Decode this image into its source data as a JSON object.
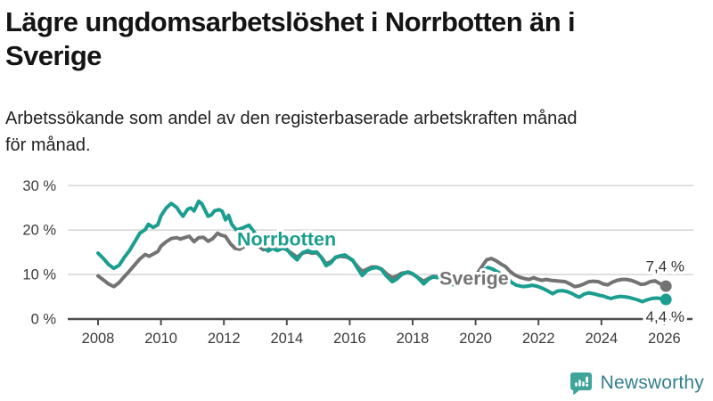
{
  "header": {
    "title_lines": [
      "Lägre ungdomsarbetslöshet i Norrbotten än i",
      "Sverige"
    ],
    "subtitle_lines": [
      "Arbetssökande som andel av den registerbaserade arbetskraften månad",
      "för månad."
    ]
  },
  "logo": {
    "label": "Newsworthy",
    "icon": "newsworthy-speech-bubble-bar-chart-icon",
    "icon_color": "#3fa49a",
    "text_color": "#337f8e"
  },
  "chart_data": {
    "type": "line",
    "x_unit": "year, monthly observations",
    "xlim": [
      2007.9,
      2026.4
    ],
    "ylim": [
      0,
      32
    ],
    "grid": "horizontal",
    "axis_color": "#4d4d4d",
    "grid_color": "#d8d8d8",
    "tick_text_color": "#3a3a3a",
    "yticks": [
      {
        "value": 0,
        "label": "0 %"
      },
      {
        "value": 10,
        "label": "10 %"
      },
      {
        "value": 20,
        "label": "20 %"
      },
      {
        "value": 30,
        "label": "30 %"
      }
    ],
    "xticks": [
      {
        "value": 2008,
        "label": "2008"
      },
      {
        "value": 2010,
        "label": "2010"
      },
      {
        "value": 2012,
        "label": "2012"
      },
      {
        "value": 2014,
        "label": "2014"
      },
      {
        "value": 2016,
        "label": "2016"
      },
      {
        "value": 2018,
        "label": "2018"
      },
      {
        "value": 2020,
        "label": "2020"
      },
      {
        "value": 2022,
        "label": "2022"
      },
      {
        "value": 2024,
        "label": "2024"
      },
      {
        "value": 2026,
        "label": "2026"
      }
    ],
    "series": [
      {
        "name": "Sverige",
        "color": "#737373",
        "label_pos": [
          2018.85,
          9.2
        ],
        "end_label": "7,4 %",
        "end_label_center_pct": 11.8,
        "end_value": 7.4,
        "points": [
          [
            2008.0,
            9.7
          ],
          [
            2008.17,
            8.8
          ],
          [
            2008.33,
            7.9
          ],
          [
            2008.5,
            7.3
          ],
          [
            2008.67,
            8.2
          ],
          [
            2008.83,
            9.5
          ],
          [
            2009.0,
            10.8
          ],
          [
            2009.17,
            12.2
          ],
          [
            2009.33,
            13.5
          ],
          [
            2009.5,
            14.5
          ],
          [
            2009.62,
            14.1
          ],
          [
            2009.75,
            14.6
          ],
          [
            2009.9,
            15.2
          ],
          [
            2010.0,
            16.4
          ],
          [
            2010.17,
            17.4
          ],
          [
            2010.33,
            18.1
          ],
          [
            2010.5,
            18.3
          ],
          [
            2010.62,
            18.0
          ],
          [
            2010.75,
            18.3
          ],
          [
            2010.9,
            18.6
          ],
          [
            2011.05,
            17.4
          ],
          [
            2011.2,
            18.3
          ],
          [
            2011.35,
            18.4
          ],
          [
            2011.5,
            17.5
          ],
          [
            2011.65,
            18.1
          ],
          [
            2011.8,
            19.3
          ],
          [
            2011.9,
            18.9
          ],
          [
            2012.05,
            18.6
          ],
          [
            2012.2,
            17.0
          ],
          [
            2012.35,
            15.9
          ],
          [
            2012.5,
            15.7
          ],
          [
            2012.65,
            16.3
          ],
          [
            2012.8,
            16.8
          ],
          [
            2012.95,
            17.0
          ],
          [
            2013.1,
            16.4
          ],
          [
            2013.25,
            15.6
          ],
          [
            2013.4,
            15.9
          ],
          [
            2013.55,
            16.3
          ],
          [
            2013.7,
            16.4
          ],
          [
            2013.85,
            16.0
          ],
          [
            2014.0,
            15.6
          ],
          [
            2014.15,
            14.8
          ],
          [
            2014.33,
            13.9
          ],
          [
            2014.5,
            14.8
          ],
          [
            2014.65,
            15.1
          ],
          [
            2014.8,
            14.8
          ],
          [
            2014.95,
            14.9
          ],
          [
            2015.1,
            13.9
          ],
          [
            2015.25,
            12.4
          ],
          [
            2015.4,
            12.9
          ],
          [
            2015.55,
            13.8
          ],
          [
            2015.7,
            14.1
          ],
          [
            2015.85,
            14.0
          ],
          [
            2015.95,
            13.8
          ],
          [
            2016.1,
            13.1
          ],
          [
            2016.25,
            11.8
          ],
          [
            2016.4,
            10.7
          ],
          [
            2016.55,
            11.2
          ],
          [
            2016.7,
            11.7
          ],
          [
            2016.85,
            11.7
          ],
          [
            2017.0,
            11.3
          ],
          [
            2017.15,
            10.3
          ],
          [
            2017.35,
            9.3
          ],
          [
            2017.5,
            9.7
          ],
          [
            2017.65,
            10.3
          ],
          [
            2017.85,
            10.5
          ],
          [
            2018.0,
            10.1
          ],
          [
            2018.15,
            9.4
          ],
          [
            2018.35,
            8.5
          ],
          [
            2018.5,
            9.1
          ],
          [
            2018.65,
            9.6
          ],
          [
            2018.8,
            9.5
          ],
          [
            2019.0,
            9.2
          ],
          [
            2019.15,
            8.6
          ],
          [
            2019.3,
            8.3
          ],
          [
            2019.5,
            8.8
          ],
          [
            2019.7,
            9.2
          ],
          [
            2019.85,
            9.4
          ],
          [
            2020.0,
            9.7
          ],
          [
            2020.2,
            11.8
          ],
          [
            2020.35,
            13.3
          ],
          [
            2020.5,
            13.6
          ],
          [
            2020.65,
            13.1
          ],
          [
            2020.8,
            12.4
          ],
          [
            2020.95,
            11.8
          ],
          [
            2021.1,
            10.7
          ],
          [
            2021.25,
            9.9
          ],
          [
            2021.4,
            9.4
          ],
          [
            2021.55,
            9.1
          ],
          [
            2021.7,
            8.9
          ],
          [
            2021.85,
            9.3
          ],
          [
            2021.95,
            9.0
          ],
          [
            2022.1,
            8.7
          ],
          [
            2022.25,
            8.9
          ],
          [
            2022.4,
            8.7
          ],
          [
            2022.55,
            8.6
          ],
          [
            2022.7,
            8.5
          ],
          [
            2022.85,
            8.4
          ],
          [
            2023.0,
            7.9
          ],
          [
            2023.15,
            7.3
          ],
          [
            2023.3,
            7.5
          ],
          [
            2023.45,
            7.9
          ],
          [
            2023.6,
            8.4
          ],
          [
            2023.75,
            8.5
          ],
          [
            2023.9,
            8.4
          ],
          [
            2024.05,
            7.9
          ],
          [
            2024.2,
            7.7
          ],
          [
            2024.35,
            8.3
          ],
          [
            2024.5,
            8.7
          ],
          [
            2024.65,
            8.9
          ],
          [
            2024.8,
            8.9
          ],
          [
            2024.95,
            8.7
          ],
          [
            2025.1,
            8.3
          ],
          [
            2025.25,
            7.8
          ],
          [
            2025.4,
            7.9
          ],
          [
            2025.55,
            8.4
          ],
          [
            2025.7,
            8.6
          ],
          [
            2025.85,
            8.0
          ],
          [
            2026.05,
            7.4
          ]
        ]
      },
      {
        "name": "Norrbotten",
        "color": "#1b9e8f",
        "label_pos": [
          2012.42,
          18.0
        ],
        "end_label": "4,4 %",
        "end_label_center_pct": 0.5,
        "end_value": 4.4,
        "points": [
          [
            2008.0,
            14.8
          ],
          [
            2008.17,
            13.6
          ],
          [
            2008.33,
            12.3
          ],
          [
            2008.5,
            11.4
          ],
          [
            2008.67,
            12.1
          ],
          [
            2008.83,
            13.8
          ],
          [
            2009.0,
            15.4
          ],
          [
            2009.17,
            17.4
          ],
          [
            2009.33,
            19.3
          ],
          [
            2009.5,
            20.1
          ],
          [
            2009.6,
            21.3
          ],
          [
            2009.75,
            20.6
          ],
          [
            2009.9,
            21.2
          ],
          [
            2010.0,
            23.2
          ],
          [
            2010.17,
            25.0
          ],
          [
            2010.33,
            26.0
          ],
          [
            2010.5,
            25.1
          ],
          [
            2010.6,
            24.0
          ],
          [
            2010.7,
            23.1
          ],
          [
            2010.85,
            24.7
          ],
          [
            2010.95,
            25.0
          ],
          [
            2011.05,
            24.3
          ],
          [
            2011.2,
            26.5
          ],
          [
            2011.3,
            25.9
          ],
          [
            2011.5,
            23.1
          ],
          [
            2011.6,
            23.4
          ],
          [
            2011.7,
            24.3
          ],
          [
            2011.85,
            24.6
          ],
          [
            2011.95,
            24.2
          ],
          [
            2012.05,
            22.3
          ],
          [
            2012.15,
            23.3
          ],
          [
            2012.25,
            21.3
          ],
          [
            2012.4,
            20.0
          ],
          [
            2012.6,
            20.5
          ],
          [
            2012.8,
            21.1
          ],
          [
            2013.0,
            19.2
          ],
          [
            2013.2,
            16.6
          ],
          [
            2013.4,
            15.3
          ],
          [
            2013.55,
            15.9
          ],
          [
            2013.7,
            15.4
          ],
          [
            2013.9,
            16.0
          ],
          [
            2014.0,
            15.7
          ],
          [
            2014.15,
            14.4
          ],
          [
            2014.33,
            13.3
          ],
          [
            2014.5,
            14.9
          ],
          [
            2014.67,
            15.4
          ],
          [
            2014.8,
            15.0
          ],
          [
            2014.95,
            15.1
          ],
          [
            2015.1,
            13.8
          ],
          [
            2015.25,
            12.0
          ],
          [
            2015.4,
            12.6
          ],
          [
            2015.55,
            13.9
          ],
          [
            2015.7,
            14.2
          ],
          [
            2015.85,
            14.4
          ],
          [
            2015.95,
            13.9
          ],
          [
            2016.1,
            13.2
          ],
          [
            2016.25,
            11.4
          ],
          [
            2016.4,
            9.8
          ],
          [
            2016.55,
            10.9
          ],
          [
            2016.7,
            11.4
          ],
          [
            2016.85,
            11.6
          ],
          [
            2017.0,
            11.2
          ],
          [
            2017.15,
            9.8
          ],
          [
            2017.35,
            8.4
          ],
          [
            2017.5,
            9.0
          ],
          [
            2017.65,
            10.0
          ],
          [
            2017.85,
            10.6
          ],
          [
            2018.0,
            10.2
          ],
          [
            2018.15,
            9.4
          ],
          [
            2018.35,
            7.9
          ],
          [
            2018.5,
            8.9
          ],
          [
            2018.65,
            9.5
          ],
          [
            2018.8,
            9.3
          ],
          [
            2019.0,
            9.0
          ],
          [
            2019.15,
            8.2
          ],
          [
            2019.3,
            7.7
          ],
          [
            2019.5,
            8.6
          ],
          [
            2019.7,
            9.3
          ],
          [
            2019.85,
            9.4
          ],
          [
            2020.0,
            9.6
          ],
          [
            2020.2,
            10.8
          ],
          [
            2020.4,
            11.6
          ],
          [
            2020.55,
            11.2
          ],
          [
            2020.7,
            10.6
          ],
          [
            2020.85,
            10.0
          ],
          [
            2021.0,
            9.4
          ],
          [
            2021.15,
            8.2
          ],
          [
            2021.3,
            7.6
          ],
          [
            2021.5,
            7.3
          ],
          [
            2021.65,
            7.4
          ],
          [
            2021.8,
            7.6
          ],
          [
            2021.95,
            7.4
          ],
          [
            2022.1,
            7.0
          ],
          [
            2022.3,
            6.3
          ],
          [
            2022.45,
            5.7
          ],
          [
            2022.6,
            6.3
          ],
          [
            2022.75,
            6.4
          ],
          [
            2022.9,
            6.2
          ],
          [
            2023.05,
            5.8
          ],
          [
            2023.2,
            5.2
          ],
          [
            2023.3,
            4.9
          ],
          [
            2023.45,
            5.6
          ],
          [
            2023.6,
            5.9
          ],
          [
            2023.75,
            5.7
          ],
          [
            2023.9,
            5.4
          ],
          [
            2024.05,
            5.2
          ],
          [
            2024.2,
            4.8
          ],
          [
            2024.3,
            4.6
          ],
          [
            2024.45,
            4.9
          ],
          [
            2024.6,
            5.1
          ],
          [
            2024.75,
            5.0
          ],
          [
            2024.9,
            4.8
          ],
          [
            2025.0,
            4.6
          ],
          [
            2025.15,
            4.3
          ],
          [
            2025.3,
            3.9
          ],
          [
            2025.45,
            4.3
          ],
          [
            2025.6,
            4.6
          ],
          [
            2025.75,
            4.7
          ],
          [
            2025.9,
            4.6
          ],
          [
            2026.05,
            4.4
          ]
        ]
      }
    ]
  }
}
